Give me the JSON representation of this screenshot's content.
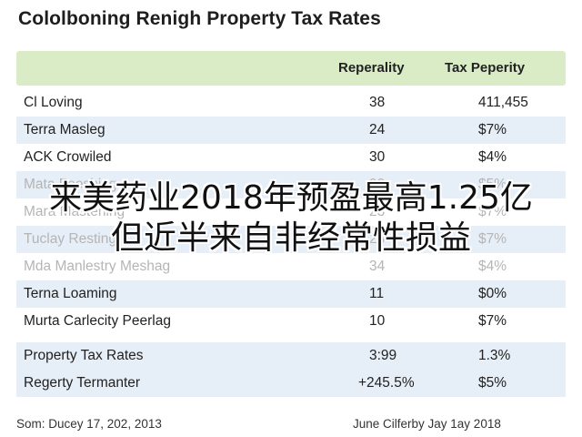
{
  "title": "Cololboning Renigh Property Tax Rates",
  "columns": [
    "",
    "Reperality",
    "Tax Peperity"
  ],
  "rows": [
    [
      "Cl Loving",
      "38",
      "411,455"
    ],
    [
      "Terra Masleg",
      "24",
      "$7%"
    ],
    [
      "ACK Crowiled",
      "30",
      "$4%"
    ],
    [
      "Mata Feeshing",
      "99",
      "$5%"
    ],
    [
      "Mara Mastening",
      "23",
      "$7%"
    ],
    [
      "Tuclay Resting",
      "23",
      "$7%"
    ],
    [
      "Mda Manlestry Meshag",
      "34",
      "$4%"
    ],
    [
      "Terna Loaming",
      "11",
      "$0%"
    ],
    [
      "Murta Carlecity Peerlag",
      "10",
      "$7%"
    ]
  ],
  "summary": [
    [
      "Property Tax Rates",
      "3:99",
      "1.3%"
    ],
    [
      "Regerty Termanter",
      "+245.5%",
      "$5%"
    ]
  ],
  "footer": {
    "left": "Som: Ducey 17, 202, 2013",
    "right": "June Cilferby Jay 1ay 2018"
  },
  "overlay": {
    "line1": "来美药业2018年预盈最高1.25亿",
    "line2": "但近半来自非经常性损益"
  },
  "colors": {
    "header_bg": "#d9ecc6",
    "alt_row_bg": "#e6eef7"
  }
}
